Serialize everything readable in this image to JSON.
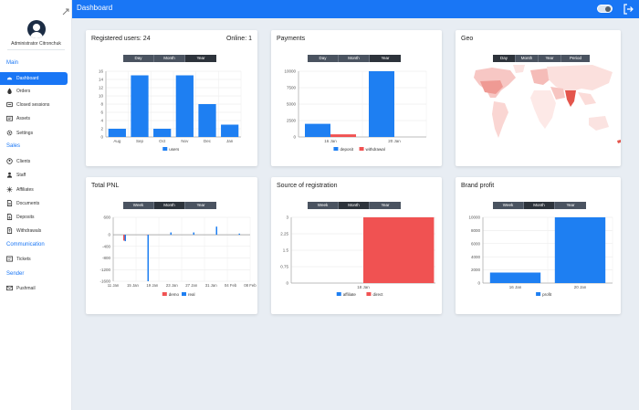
{
  "topbar": {
    "title": "Dashboard"
  },
  "user": {
    "name": "Administrator Citronchuk"
  },
  "sidebar": {
    "sections": [
      {
        "label": "Main",
        "items": [
          "Dashboard",
          "Orders",
          "Closed sessions",
          "Assets",
          "Settings"
        ]
      },
      {
        "label": "Sales",
        "items": [
          "Clients",
          "Staff",
          "Affiliates",
          "Documents",
          "Deposits",
          "Withdrawals"
        ]
      },
      {
        "label": "Communication",
        "items": [
          "Tickets"
        ]
      },
      {
        "label": "Sender",
        "items": [
          "Pushmail"
        ]
      }
    ],
    "active": "Dashboard"
  },
  "cards": {
    "registered": {
      "title": "Registered users: 24",
      "online": "Online: 1",
      "tabs": [
        "Day",
        "Month",
        "Year"
      ],
      "selected": "Year"
    },
    "payments": {
      "title": "Payments",
      "tabs": [
        "Day",
        "Month",
        "Year"
      ],
      "selected": "Year"
    },
    "geo": {
      "title": "Geo",
      "tabs": [
        "Day",
        "Month",
        "Year",
        "Period"
      ],
      "selected": "Day"
    },
    "pnl": {
      "title": "Total PNL",
      "tabs": [
        "Week",
        "Month",
        "Year"
      ],
      "selected": "Month"
    },
    "source": {
      "title": "Source of registration",
      "tabs": [
        "Week",
        "Month",
        "Year"
      ],
      "selected": "Month"
    },
    "brand": {
      "title": "Brand profit",
      "tabs": [
        "Week",
        "Month",
        "Year"
      ],
      "selected": "Month"
    }
  },
  "chart_data": [
    {
      "id": "registered",
      "type": "bar",
      "categories": [
        "Aug",
        "Sep",
        "Oct",
        "Nov",
        "Dec",
        "Jan"
      ],
      "series": [
        {
          "name": "users",
          "values": [
            2,
            15,
            2,
            15,
            8,
            3
          ]
        }
      ],
      "ylim": [
        0,
        16
      ],
      "yticks": [
        0,
        2,
        4,
        6,
        8,
        10,
        12,
        14,
        16
      ],
      "colors": [
        "#1e7ff2"
      ]
    },
    {
      "id": "payments",
      "type": "bar",
      "categories": [
        "16 Jan",
        "20 Jan"
      ],
      "series": [
        {
          "name": "deposit",
          "values": [
            2000,
            10000
          ]
        },
        {
          "name": "withdrawal",
          "values": [
            400,
            0
          ]
        }
      ],
      "ylim": [
        0,
        10000
      ],
      "yticks": [
        0,
        2500,
        5000,
        7500,
        10000
      ],
      "colors": [
        "#1e7ff2",
        "#f05252"
      ]
    },
    {
      "id": "pnl",
      "type": "bar",
      "categories": [
        "11 Jan",
        "16 Jan",
        "21 Jan",
        "26 Jan",
        "31 Jan",
        "05 Feb"
      ],
      "xticks": [
        "11 Jan",
        "15 Jan",
        "19 Jan",
        "23 Jan",
        "27 Jan",
        "31 Jan",
        "04 Feb",
        "08 Feb"
      ],
      "series": [
        {
          "name": "demo",
          "values": [
            -200,
            -10,
            0,
            0,
            0,
            0
          ]
        },
        {
          "name": "real",
          "values": [
            -220,
            -1600,
            80,
            80,
            280,
            40
          ]
        }
      ],
      "ylim": [
        -1600,
        600
      ],
      "yticks": [
        600,
        0,
        -400,
        -800,
        -1200,
        -1600
      ],
      "colors": [
        "#f05252",
        "#1e7ff2"
      ]
    },
    {
      "id": "source",
      "type": "bar",
      "categories": [
        "18 Jan"
      ],
      "series": [
        {
          "name": "affiliate",
          "values": [
            0
          ]
        },
        {
          "name": "direct",
          "values": [
            3
          ]
        }
      ],
      "ylim": [
        0,
        3
      ],
      "yticks": [
        0,
        0.75,
        1.5,
        2.25,
        3
      ],
      "colors": [
        "#1e7ff2",
        "#f05252"
      ]
    },
    {
      "id": "brand",
      "type": "bar",
      "categories": [
        "16 Jan",
        "20 Jan"
      ],
      "series": [
        {
          "name": "profit",
          "values": [
            1600,
            10000
          ]
        }
      ],
      "ylim": [
        0,
        10000
      ],
      "yticks": [
        0,
        2000,
        4000,
        6000,
        8000,
        10000
      ],
      "colors": [
        "#1e7ff2"
      ]
    }
  ]
}
